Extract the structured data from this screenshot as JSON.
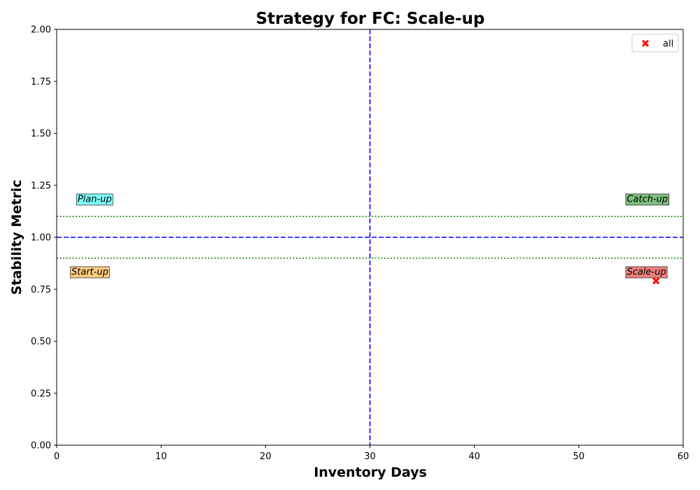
{
  "chart_data": {
    "type": "scatter",
    "title": "Strategy for FC: Scale-up",
    "xlabel": "Inventory Days",
    "ylabel": "Stability Metric",
    "xlim": [
      0,
      60
    ],
    "ylim": [
      0,
      2
    ],
    "xticks": [
      0,
      10,
      20,
      30,
      40,
      50,
      60
    ],
    "yticks": [
      0.0,
      0.25,
      0.5,
      0.75,
      1.0,
      1.25,
      1.5,
      1.75,
      2.0
    ],
    "ytick_labels": [
      "0.00",
      "0.25",
      "0.50",
      "0.75",
      "1.00",
      "1.25",
      "1.50",
      "1.75",
      "2.00"
    ],
    "grid": false,
    "legend_position": "top-right",
    "series": [
      {
        "name": "all",
        "color": "#ff0000",
        "marker": "x",
        "points": [
          {
            "x": 57.4,
            "y": 0.79
          }
        ]
      }
    ],
    "reference_lines": [
      {
        "orientation": "vertical",
        "value": 30,
        "style": "dashed",
        "color": "#0000ff"
      },
      {
        "orientation": "horizontal",
        "value": 1.0,
        "style": "dashed",
        "color": "#0000ff"
      },
      {
        "orientation": "horizontal",
        "value": 1.1,
        "style": "dotted",
        "color": "#008000"
      },
      {
        "orientation": "horizontal",
        "value": 0.9,
        "style": "dotted",
        "color": "#008000"
      }
    ],
    "quadrant_labels": [
      {
        "text": "Plan-up",
        "x": 2,
        "y": 1.17,
        "bg": "#80ffff"
      },
      {
        "text": "Catch-up",
        "x": 54.6,
        "y": 1.17,
        "bg": "#7fbf7f"
      },
      {
        "text": "Start-up",
        "x": 1.4,
        "y": 0.82,
        "bg": "#ffcc80"
      },
      {
        "text": "Scale-up",
        "x": 54.6,
        "y": 0.82,
        "bg": "#f08080"
      }
    ]
  }
}
